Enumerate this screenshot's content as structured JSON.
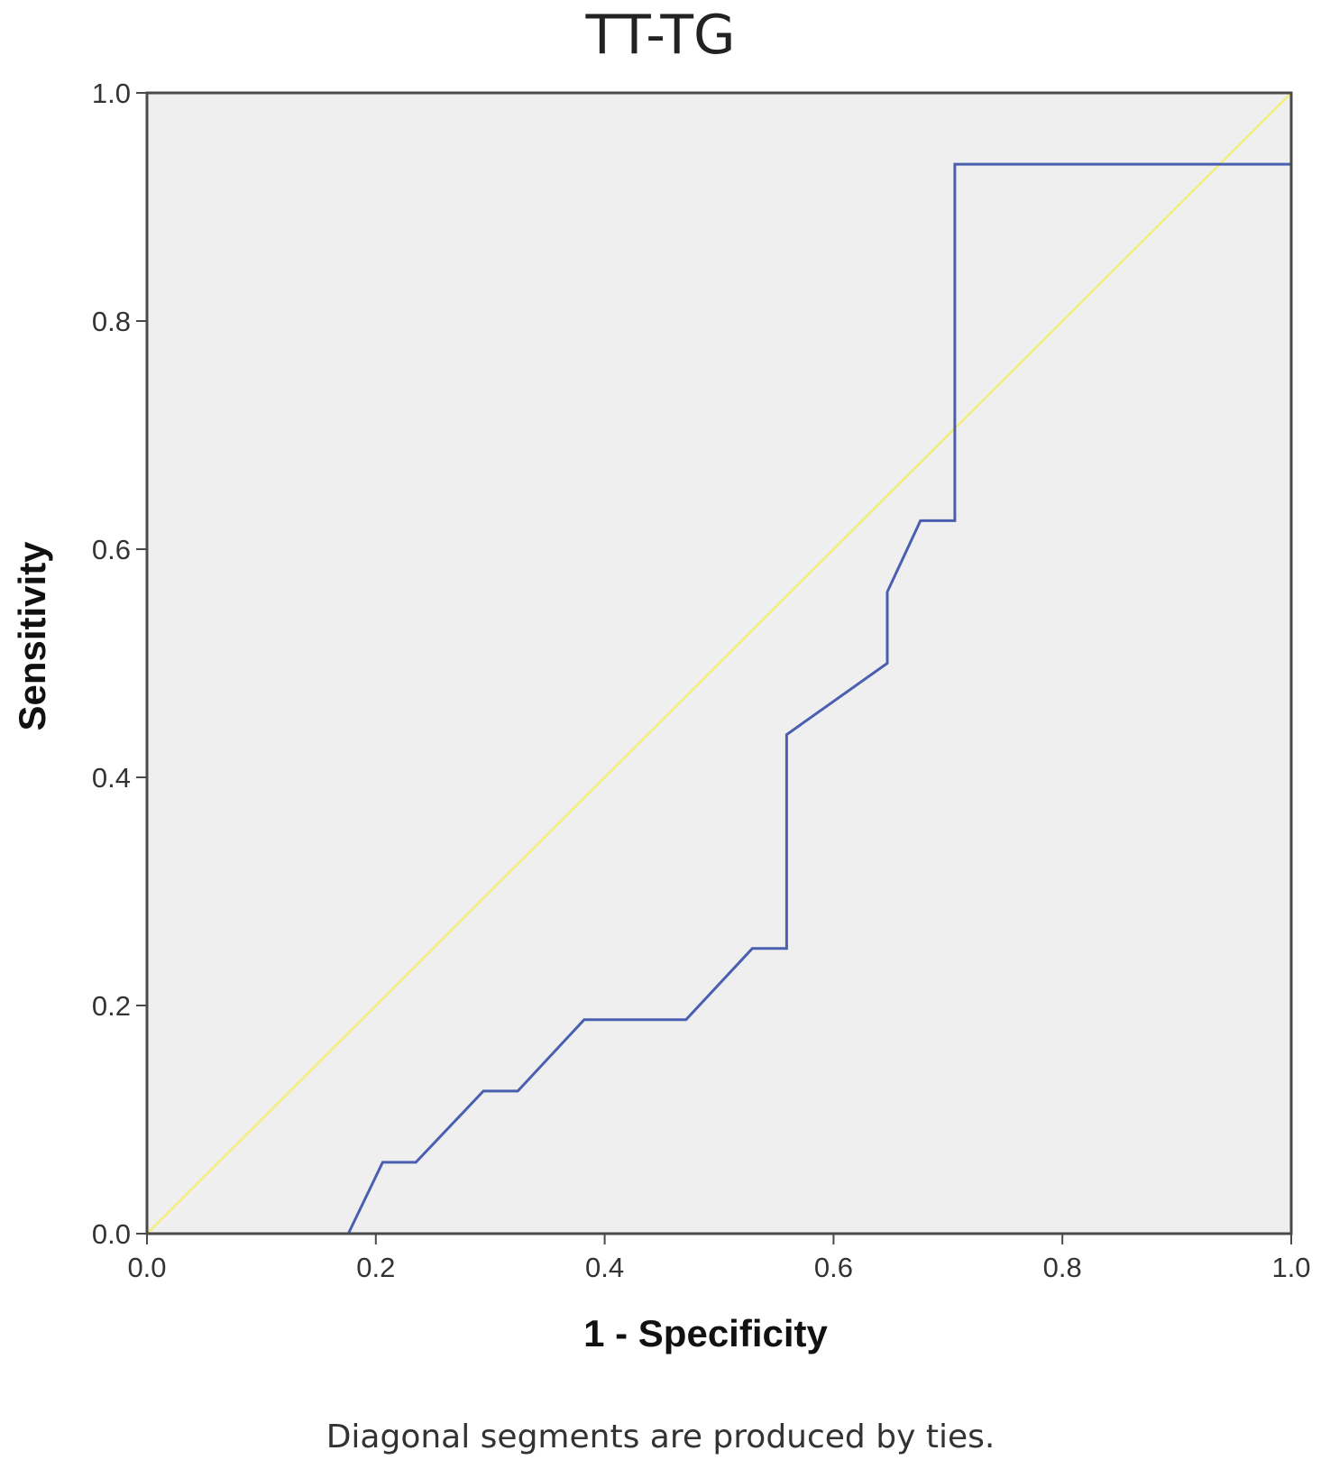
{
  "chart_data": {
    "type": "line",
    "title": "TT-TG",
    "xlabel": "1 - Specificity",
    "ylabel": "Sensitivity",
    "xlim": [
      0,
      1
    ],
    "ylim": [
      0,
      1
    ],
    "x_ticks": [
      "0.0",
      "0.2",
      "0.4",
      "0.6",
      "0.8",
      "1.0"
    ],
    "y_ticks": [
      "0.0",
      "0.2",
      "0.4",
      "0.6",
      "0.8",
      "1.0"
    ],
    "grid": false,
    "background": "#efefef",
    "series": [
      {
        "color": "#4a5fb0",
        "points": [
          [
            0,
            0
          ],
          [
            0.176,
            0
          ],
          [
            0.206,
            0.0625
          ],
          [
            0.235,
            0.0625
          ],
          [
            0.294,
            0.125
          ],
          [
            0.324,
            0.125
          ],
          [
            0.382,
            0.1875
          ],
          [
            0.471,
            0.1875
          ],
          [
            0.529,
            0.25
          ],
          [
            0.559,
            0.25
          ],
          [
            0.559,
            0.4375
          ],
          [
            0.647,
            0.5
          ],
          [
            0.647,
            0.5625
          ],
          [
            0.676,
            0.625
          ],
          [
            0.706,
            0.625
          ],
          [
            0.706,
            0.9375
          ],
          [
            1.0,
            0.9375
          ],
          [
            1.0,
            1.0
          ]
        ]
      },
      {
        "color": "#f2ef7a",
        "points": [
          [
            0,
            0
          ],
          [
            1,
            1
          ]
        ]
      }
    ],
    "footnote": "Diagonal segments are produced by ties."
  }
}
